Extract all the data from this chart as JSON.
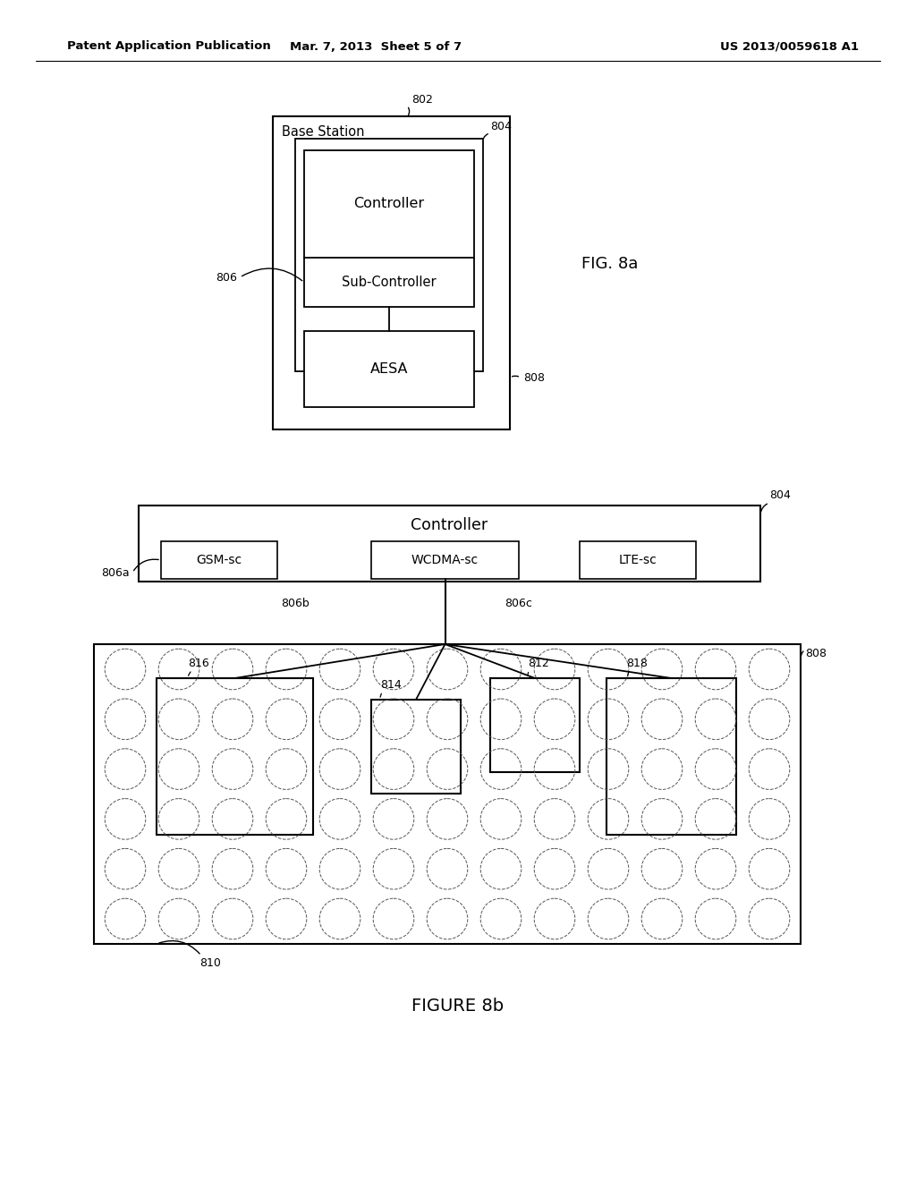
{
  "bg_color": "#ffffff",
  "header_left": "Patent Application Publication",
  "header_mid": "Mar. 7, 2013  Sheet 5 of 7",
  "header_right": "US 2013/0059618 A1",
  "fig8a_label": "FIG. 8a",
  "fig8b_label": "FIGURE 8b"
}
